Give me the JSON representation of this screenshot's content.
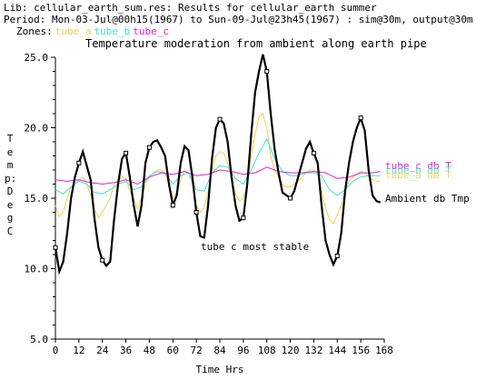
{
  "header": {
    "lib_line": "Lib: cellular_earth_sum.res: Results for cellular_earth summer",
    "period_line": "Period: Mon-03-Jul@00h15(1967) to Sun-09-Jul@23h45(1967) : sim@30m, output@30m",
    "zones_label": "Zones:",
    "zones": [
      {
        "name": "tube_a",
        "color": "#f0d050"
      },
      {
        "name": "tube_b",
        "color": "#40e0d0"
      },
      {
        "name": "tube_c",
        "color": "#e020e0"
      }
    ]
  },
  "chart_data": {
    "type": "line",
    "title": "Temperature moderation from ambient along earth pipe",
    "xlabel": "Time Hrs",
    "ylabel": "Temp: Deg C",
    "xlim": [
      0,
      168
    ],
    "ylim": [
      5.0,
      25.0
    ],
    "xticks": [
      "0",
      "12",
      "24",
      "36",
      "48",
      "60",
      "72",
      "84",
      "96",
      "108",
      "120",
      "132",
      "144",
      "156",
      "168"
    ],
    "yticks": [
      "5.0",
      "10.0",
      "15.0",
      "20.0",
      "25.0"
    ],
    "annotations": {
      "ambient_label": "Ambient db Tmp",
      "tube_c_label": "tube_c db T",
      "tube_b_label": "tube_b db T",
      "tube_a_label": "tube_a db T",
      "stable_note": "tube c most stable"
    },
    "series": [
      {
        "name": "Ambient db Tmp",
        "color": "#000000",
        "x": [
          0,
          2,
          4,
          6,
          8,
          10,
          12,
          14,
          16,
          18,
          20,
          22,
          24,
          26,
          28,
          30,
          32,
          34,
          36,
          38,
          40,
          42,
          44,
          46,
          48,
          50,
          52,
          54,
          56,
          58,
          60,
          62,
          64,
          66,
          68,
          70,
          72,
          74,
          76,
          78,
          80,
          82,
          84,
          86,
          88,
          90,
          92,
          94,
          96,
          98,
          100,
          102,
          104,
          106,
          108,
          110,
          112,
          114,
          116,
          118,
          120,
          122,
          124,
          126,
          128,
          130,
          132,
          134,
          136,
          138,
          140,
          142,
          144,
          146,
          148,
          150,
          152,
          154,
          156,
          158,
          160,
          162,
          164,
          166
        ],
        "y": [
          11.5,
          9.8,
          10.5,
          12.5,
          15.0,
          16.5,
          17.5,
          18.3,
          17.3,
          16.3,
          13.5,
          11.5,
          10.6,
          10.2,
          10.5,
          13.5,
          16.0,
          17.8,
          18.2,
          16.5,
          14.5,
          13.0,
          14.5,
          17.5,
          18.6,
          19.0,
          19.1,
          18.6,
          18.0,
          16.0,
          14.5,
          15.2,
          17.5,
          18.7,
          18.4,
          16.5,
          14.0,
          12.3,
          12.2,
          14.5,
          17.8,
          20.0,
          20.6,
          20.3,
          19.0,
          16.5,
          14.5,
          13.4,
          13.6,
          16.0,
          19.5,
          22.5,
          24.0,
          25.2,
          24.0,
          21.0,
          18.5,
          16.8,
          15.4,
          15.2,
          15.0,
          15.5,
          16.5,
          17.5,
          18.5,
          19.0,
          18.2,
          17.5,
          14.5,
          12.0,
          11.0,
          10.3,
          10.9,
          12.5,
          15.5,
          17.5,
          19.0,
          20.0,
          20.7,
          19.8,
          17.0,
          15.2,
          14.8,
          14.7
        ]
      },
      {
        "name": "tube_a",
        "color": "#f0d050",
        "x": [
          0,
          2,
          4,
          6,
          8,
          10,
          12,
          14,
          16,
          18,
          20,
          22,
          24,
          26,
          28,
          30,
          32,
          34,
          36,
          38,
          40,
          42,
          44,
          46,
          48,
          50,
          52,
          54,
          56,
          58,
          60,
          62,
          64,
          66,
          68,
          70,
          72,
          74,
          76,
          78,
          80,
          82,
          84,
          86,
          88,
          90,
          92,
          94,
          96,
          98,
          100,
          102,
          104,
          106,
          108,
          110,
          112,
          114,
          116,
          118,
          120,
          122,
          124,
          126,
          128,
          130,
          132,
          134,
          136,
          138,
          140,
          142,
          144,
          146,
          148,
          150,
          152,
          154,
          156,
          158,
          160,
          162,
          164,
          166
        ],
        "y": [
          14.5,
          13.7,
          14.0,
          15.0,
          15.8,
          16.0,
          16.3,
          16.5,
          16.0,
          15.2,
          14.2,
          13.6,
          14.0,
          14.5,
          15.0,
          16.0,
          16.3,
          16.5,
          16.4,
          15.5,
          15.0,
          14.2,
          15.0,
          16.0,
          16.5,
          16.8,
          17.0,
          17.0,
          16.8,
          16.0,
          15.0,
          15.4,
          16.3,
          17.0,
          16.8,
          16.0,
          14.5,
          14.0,
          14.3,
          15.5,
          17.0,
          18.0,
          18.3,
          18.2,
          17.5,
          16.5,
          15.3,
          14.8,
          15.0,
          16.0,
          18.0,
          19.5,
          20.8,
          21.0,
          20.0,
          18.0,
          17.0,
          16.5,
          16.0,
          15.8,
          15.8,
          16.0,
          16.2,
          16.5,
          16.8,
          17.0,
          17.0,
          16.8,
          15.5,
          14.3,
          13.5,
          13.2,
          13.8,
          14.5,
          15.5,
          16.2,
          16.5,
          16.7,
          16.9,
          16.8,
          16.5,
          16.3,
          16.2,
          16.2
        ]
      },
      {
        "name": "tube_b",
        "color": "#40e0d0",
        "x": [
          0,
          4,
          8,
          12,
          16,
          20,
          24,
          28,
          32,
          36,
          40,
          44,
          48,
          52,
          56,
          60,
          64,
          68,
          72,
          76,
          80,
          84,
          88,
          92,
          96,
          100,
          104,
          108,
          112,
          116,
          120,
          124,
          128,
          132,
          136,
          140,
          144,
          148,
          152,
          156,
          160,
          164,
          166
        ],
        "y": [
          15.6,
          15.3,
          15.8,
          16.2,
          16.0,
          15.4,
          15.3,
          15.6,
          16.0,
          16.2,
          15.6,
          15.8,
          16.6,
          16.9,
          16.8,
          16.0,
          16.6,
          16.8,
          15.6,
          15.5,
          16.8,
          17.3,
          17.2,
          16.4,
          16.0,
          17.0,
          18.2,
          19.2,
          17.8,
          16.9,
          16.6,
          16.6,
          16.8,
          16.8,
          16.6,
          15.6,
          15.2,
          15.6,
          16.2,
          16.5,
          16.6,
          16.6,
          16.6
        ]
      },
      {
        "name": "tube_c",
        "color": "#e020e0",
        "x": [
          0,
          6,
          12,
          18,
          24,
          30,
          36,
          42,
          48,
          54,
          60,
          66,
          72,
          78,
          84,
          90,
          96,
          102,
          108,
          114,
          120,
          126,
          132,
          138,
          144,
          150,
          156,
          162,
          166
        ],
        "y": [
          16.3,
          16.2,
          16.3,
          16.1,
          16.0,
          16.1,
          16.3,
          16.0,
          16.5,
          16.8,
          16.7,
          16.9,
          16.6,
          16.7,
          17.0,
          16.9,
          16.7,
          16.8,
          17.2,
          16.9,
          16.8,
          16.8,
          16.9,
          16.8,
          16.4,
          16.5,
          16.8,
          16.8,
          16.9
        ]
      }
    ]
  }
}
